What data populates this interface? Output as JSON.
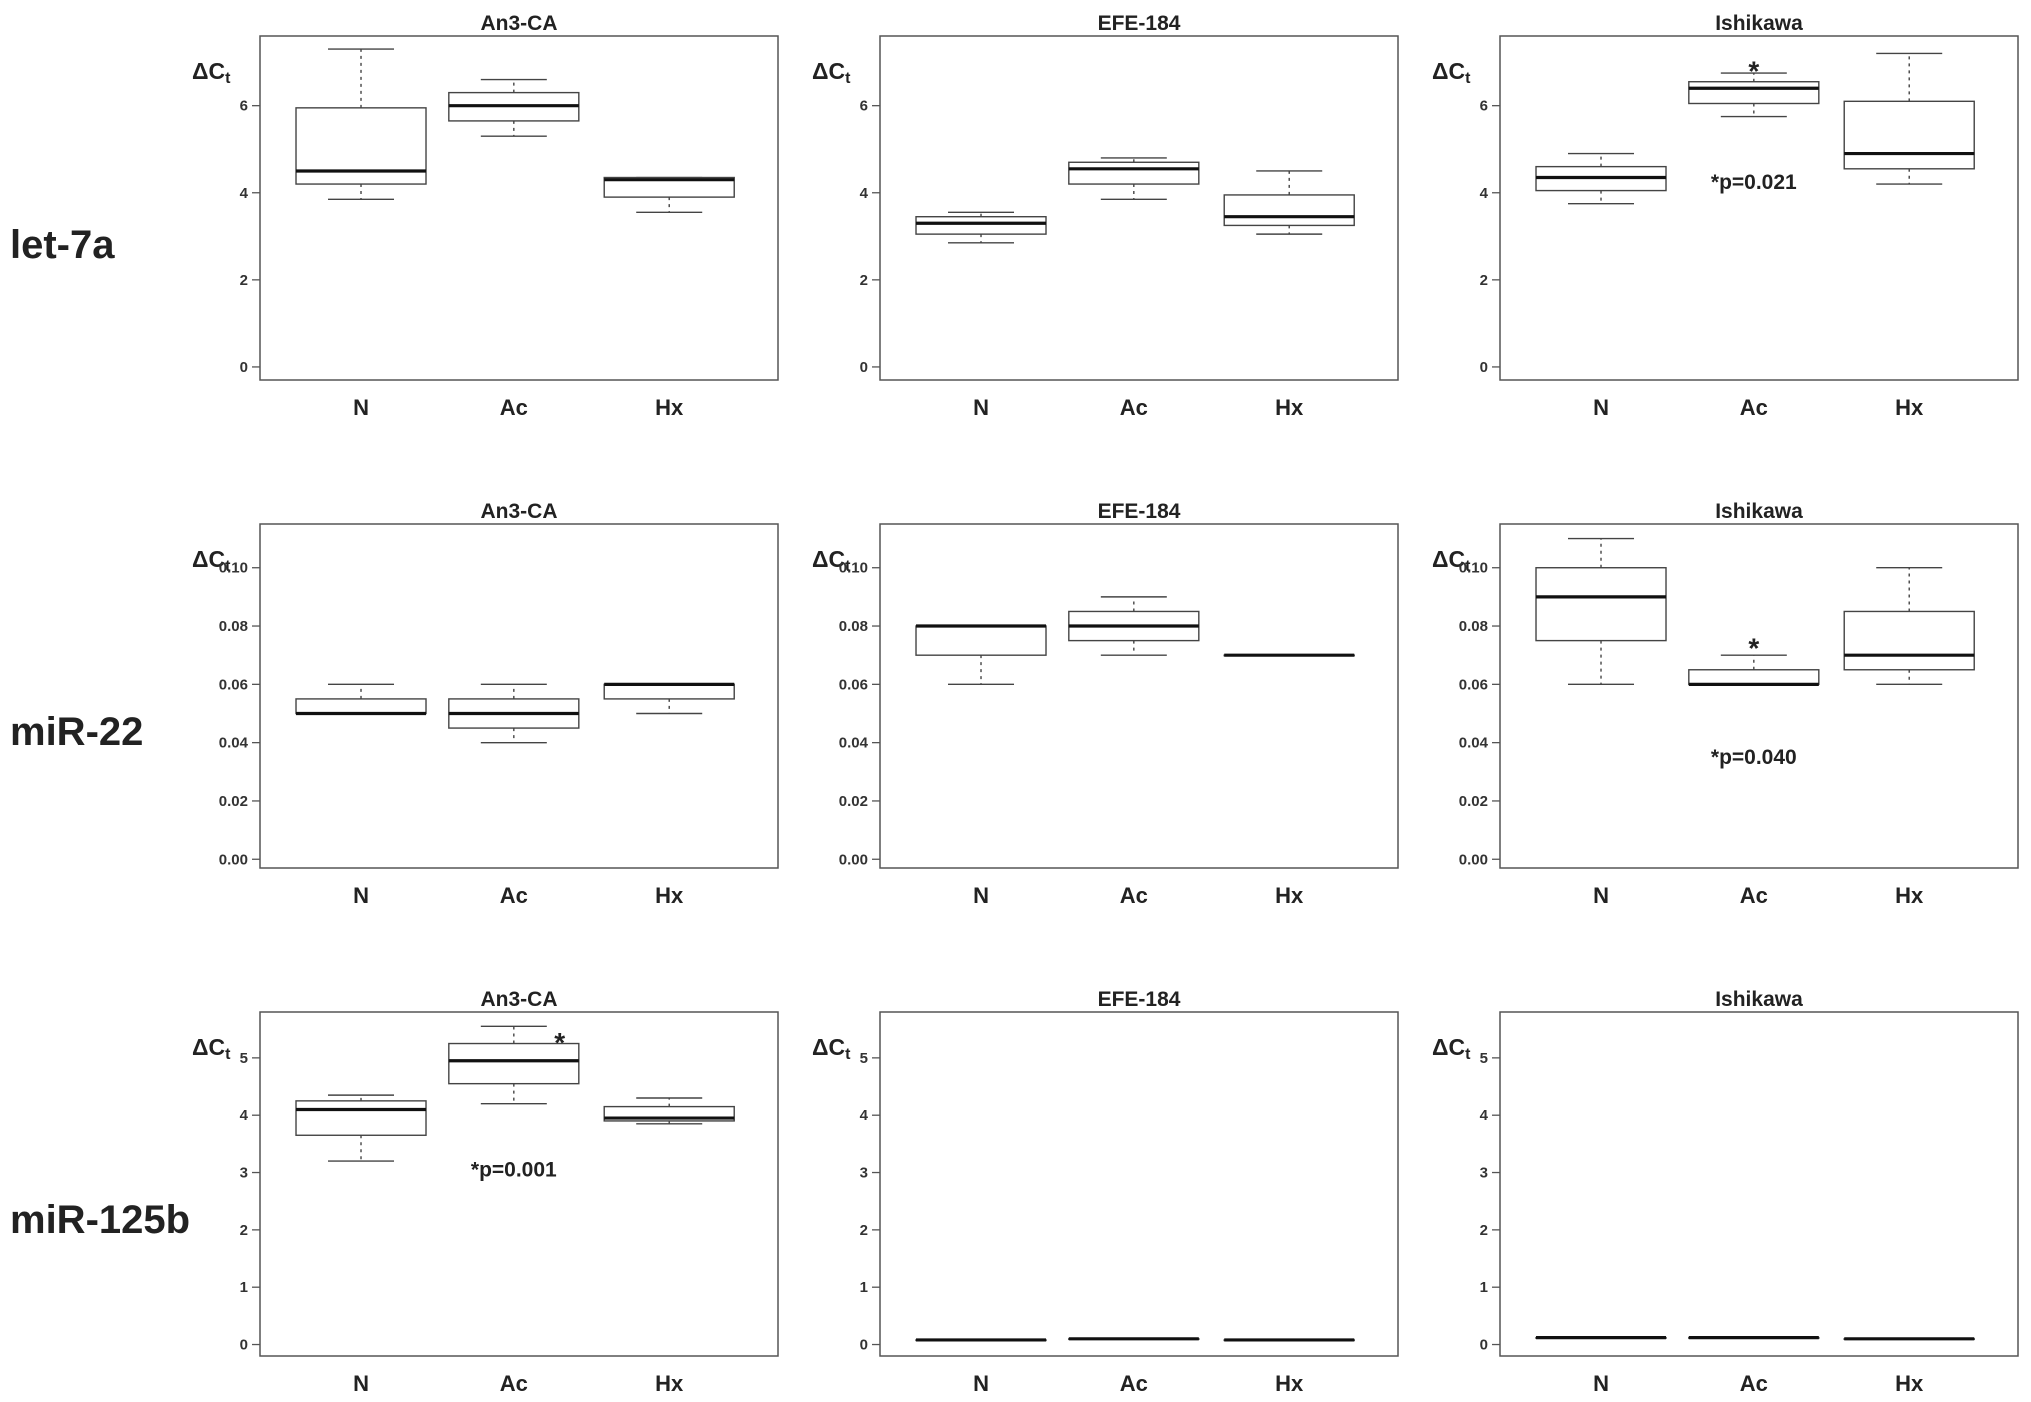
{
  "figure": {
    "ylabel_main": "ΔC",
    "ylabel_sub": "t",
    "categories": [
      "N",
      "Ac",
      "Hx"
    ],
    "columns": [
      "An3-CA",
      "EFE-184",
      "Ishikawa"
    ]
  },
  "chart_data": [
    {
      "type": "box",
      "row_label": "let-7a",
      "title": "An3-CA",
      "categories": [
        "N",
        "Ac",
        "Hx"
      ],
      "ylim": [
        -0.3,
        7.6
      ],
      "ticks": [
        0,
        2,
        4,
        6
      ],
      "decimals": 0,
      "boxes": [
        {
          "min": 3.85,
          "q1": 4.2,
          "median": 4.5,
          "q3": 5.95,
          "max": 7.3
        },
        {
          "min": 5.3,
          "q1": 5.65,
          "median": 6.0,
          "q3": 6.3,
          "max": 6.6
        },
        {
          "min": 3.55,
          "q1": 3.9,
          "median": 4.3,
          "q3": 4.35,
          "max": 4.35
        }
      ],
      "annotations": []
    },
    {
      "type": "box",
      "row_label": "let-7a",
      "title": "EFE-184",
      "categories": [
        "N",
        "Ac",
        "Hx"
      ],
      "ylim": [
        -0.3,
        7.6
      ],
      "ticks": [
        0,
        2,
        4,
        6
      ],
      "decimals": 0,
      "boxes": [
        {
          "min": 2.85,
          "q1": 3.05,
          "median": 3.3,
          "q3": 3.45,
          "max": 3.55
        },
        {
          "min": 3.85,
          "q1": 4.2,
          "median": 4.55,
          "q3": 4.7,
          "max": 4.8
        },
        {
          "min": 3.05,
          "q1": 3.25,
          "median": 3.45,
          "q3": 3.95,
          "max": 4.5
        }
      ],
      "annotations": []
    },
    {
      "type": "box",
      "row_label": "let-7a",
      "title": "Ishikawa",
      "categories": [
        "N",
        "Ac",
        "Hx"
      ],
      "ylim": [
        -0.3,
        7.6
      ],
      "ticks": [
        0,
        2,
        4,
        6
      ],
      "decimals": 0,
      "boxes": [
        {
          "min": 3.75,
          "q1": 4.05,
          "median": 4.35,
          "q3": 4.6,
          "max": 4.9
        },
        {
          "min": 5.75,
          "q1": 6.05,
          "median": 6.4,
          "q3": 6.55,
          "max": 6.75
        },
        {
          "min": 4.2,
          "q1": 4.55,
          "median": 4.9,
          "q3": 6.1,
          "max": 7.2
        }
      ],
      "annotations": [
        {
          "text": "*",
          "x": 1,
          "y": 6.9
        },
        {
          "text": "*p=0.021",
          "x": 1,
          "y": 4.25
        }
      ]
    },
    {
      "type": "box",
      "row_label": "miR-22",
      "title": "An3-CA",
      "categories": [
        "N",
        "Ac",
        "Hx"
      ],
      "ylim": [
        -0.003,
        0.115
      ],
      "ticks": [
        0.0,
        0.02,
        0.04,
        0.06,
        0.08,
        0.1
      ],
      "decimals": 2,
      "boxes": [
        {
          "min": 0.05,
          "q1": 0.05,
          "median": 0.05,
          "q3": 0.055,
          "max": 0.06
        },
        {
          "min": 0.04,
          "q1": 0.045,
          "median": 0.05,
          "q3": 0.055,
          "max": 0.06
        },
        {
          "min": 0.05,
          "q1": 0.055,
          "median": 0.06,
          "q3": 0.06,
          "max": 0.06
        }
      ],
      "annotations": []
    },
    {
      "type": "box",
      "row_label": "miR-22",
      "title": "EFE-184",
      "categories": [
        "N",
        "Ac",
        "Hx"
      ],
      "ylim": [
        -0.003,
        0.115
      ],
      "ticks": [
        0.0,
        0.02,
        0.04,
        0.06,
        0.08,
        0.1
      ],
      "decimals": 2,
      "boxes": [
        {
          "min": 0.06,
          "q1": 0.07,
          "median": 0.08,
          "q3": 0.08,
          "max": 0.08
        },
        {
          "min": 0.07,
          "q1": 0.075,
          "median": 0.08,
          "q3": 0.085,
          "max": 0.09
        },
        {
          "min": 0.07,
          "q1": 0.07,
          "median": 0.07,
          "q3": 0.07,
          "max": 0.07
        }
      ],
      "annotations": []
    },
    {
      "type": "box",
      "row_label": "miR-22",
      "title": "Ishikawa",
      "categories": [
        "N",
        "Ac",
        "Hx"
      ],
      "ylim": [
        -0.003,
        0.115
      ],
      "ticks": [
        0.0,
        0.02,
        0.04,
        0.06,
        0.08,
        0.1
      ],
      "decimals": 2,
      "boxes": [
        {
          "min": 0.06,
          "q1": 0.075,
          "median": 0.09,
          "q3": 0.1,
          "max": 0.11
        },
        {
          "min": 0.06,
          "q1": 0.06,
          "median": 0.06,
          "q3": 0.065,
          "max": 0.07
        },
        {
          "min": 0.06,
          "q1": 0.065,
          "median": 0.07,
          "q3": 0.085,
          "max": 0.1
        }
      ],
      "annotations": [
        {
          "text": "*",
          "x": 1,
          "y": 0.074
        },
        {
          "text": "*p=0.040",
          "x": 1,
          "y": 0.035
        }
      ]
    },
    {
      "type": "box",
      "row_label": "miR-125b",
      "title": "An3-CA",
      "categories": [
        "N",
        "Ac",
        "Hx"
      ],
      "ylim": [
        -0.2,
        5.8
      ],
      "ticks": [
        0,
        1,
        2,
        3,
        4,
        5
      ],
      "decimals": 0,
      "boxes": [
        {
          "min": 3.2,
          "q1": 3.65,
          "median": 4.1,
          "q3": 4.25,
          "max": 4.35
        },
        {
          "min": 4.2,
          "q1": 4.55,
          "median": 4.95,
          "q3": 5.25,
          "max": 5.55
        },
        {
          "min": 3.85,
          "q1": 3.9,
          "median": 3.95,
          "q3": 4.15,
          "max": 4.3
        }
      ],
      "annotations": [
        {
          "text": "*",
          "x": 1.3,
          "y": 5.35
        },
        {
          "text": "*p=0.001",
          "x": 1,
          "y": 3.05
        }
      ]
    },
    {
      "type": "box",
      "row_label": "miR-125b",
      "title": "EFE-184",
      "categories": [
        "N",
        "Ac",
        "Hx"
      ],
      "ylim": [
        -0.2,
        5.8
      ],
      "ticks": [
        0,
        1,
        2,
        3,
        4,
        5
      ],
      "decimals": 0,
      "boxes": [
        {
          "min": 0.08,
          "q1": 0.08,
          "median": 0.08,
          "q3": 0.08,
          "max": 0.08
        },
        {
          "min": 0.1,
          "q1": 0.1,
          "median": 0.1,
          "q3": 0.1,
          "max": 0.1
        },
        {
          "min": 0.08,
          "q1": 0.08,
          "median": 0.08,
          "q3": 0.08,
          "max": 0.08
        }
      ],
      "annotations": []
    },
    {
      "type": "box",
      "row_label": "miR-125b",
      "title": "Ishikawa",
      "categories": [
        "N",
        "Ac",
        "Hx"
      ],
      "ylim": [
        -0.2,
        5.8
      ],
      "ticks": [
        0,
        1,
        2,
        3,
        4,
        5
      ],
      "decimals": 0,
      "boxes": [
        {
          "min": 0.12,
          "q1": 0.12,
          "median": 0.12,
          "q3": 0.12,
          "max": 0.12
        },
        {
          "min": 0.12,
          "q1": 0.12,
          "median": 0.12,
          "q3": 0.12,
          "max": 0.12
        },
        {
          "min": 0.1,
          "q1": 0.1,
          "median": 0.1,
          "q3": 0.1,
          "max": 0.1
        }
      ],
      "annotations": []
    }
  ],
  "row_labels": [
    "let-7a",
    "miR-22",
    "miR-125b"
  ]
}
